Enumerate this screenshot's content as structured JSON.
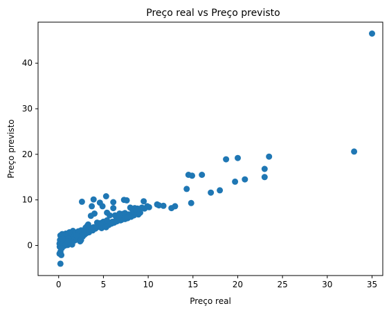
{
  "chart_data": {
    "type": "scatter",
    "title": "Preço real vs Preço previsto",
    "xlabel": "Preço real",
    "ylabel": "Preço previsto",
    "xlim": [
      -2.3,
      36.2
    ],
    "ylim": [
      -6.6,
      49.0
    ],
    "xticks": [
      0,
      5,
      10,
      15,
      20,
      25,
      30,
      35
    ],
    "yticks": [
      0,
      10,
      20,
      30,
      40
    ],
    "grid": false,
    "marker_color": "#1f77b4",
    "points": [
      [
        35.0,
        46.5
      ],
      [
        33.0,
        20.6
      ],
      [
        23.5,
        19.5
      ],
      [
        23.0,
        16.8
      ],
      [
        23.0,
        15.0
      ],
      [
        20.0,
        19.2
      ],
      [
        18.7,
        18.9
      ],
      [
        20.8,
        14.5
      ],
      [
        19.7,
        14.0
      ],
      [
        18.0,
        12.1
      ],
      [
        17.0,
        11.6
      ],
      [
        16.0,
        15.5
      ],
      [
        14.9,
        15.3
      ],
      [
        14.5,
        15.5
      ],
      [
        14.3,
        12.4
      ],
      [
        14.8,
        9.3
      ],
      [
        13.0,
        8.6
      ],
      [
        12.6,
        8.2
      ],
      [
        11.7,
        8.7
      ],
      [
        11.2,
        8.8
      ],
      [
        11.0,
        9.0
      ],
      [
        10.1,
        8.4
      ],
      [
        9.9,
        8.6
      ],
      [
        9.6,
        8.1
      ],
      [
        9.3,
        8.3
      ],
      [
        9.0,
        8.0
      ],
      [
        8.8,
        8.1
      ],
      [
        8.5,
        8.2
      ],
      [
        8.2,
        8.0
      ],
      [
        8.0,
        8.3
      ],
      [
        9.5,
        9.7
      ],
      [
        7.6,
        9.9
      ],
      [
        7.3,
        10.0
      ],
      [
        6.1,
        9.5
      ],
      [
        5.3,
        10.8
      ],
      [
        3.9,
        10.1
      ],
      [
        4.6,
        9.4
      ],
      [
        3.7,
        8.6
      ],
      [
        2.6,
        9.6
      ],
      [
        4.9,
        8.6
      ],
      [
        6.1,
        8.2
      ],
      [
        4.0,
        7.0
      ],
      [
        3.6,
        6.5
      ],
      [
        5.4,
        7.2
      ],
      [
        5.7,
        6.6
      ],
      [
        6.3,
        6.6
      ],
      [
        6.8,
        7.0
      ],
      [
        7.1,
        6.9
      ],
      [
        7.4,
        7.1
      ],
      [
        7.8,
        6.8
      ],
      [
        8.3,
        7.4
      ],
      [
        8.7,
        7.5
      ],
      [
        9.1,
        7.2
      ],
      [
        8.9,
        6.8
      ],
      [
        8.4,
        6.6
      ],
      [
        7.5,
        6.2
      ],
      [
        7.2,
        5.9
      ],
      [
        7.0,
        5.6
      ],
      [
        6.6,
        5.8
      ],
      [
        6.4,
        5.5
      ],
      [
        6.0,
        5.2
      ],
      [
        5.8,
        4.9
      ],
      [
        5.5,
        4.6
      ],
      [
        5.2,
        4.4
      ],
      [
        4.9,
        4.7
      ],
      [
        4.6,
        4.5
      ],
      [
        4.4,
        4.1
      ],
      [
        4.1,
        3.7
      ],
      [
        3.8,
        3.3
      ],
      [
        3.5,
        3.4
      ],
      [
        3.3,
        3.1
      ],
      [
        3.0,
        3.5
      ],
      [
        2.8,
        3.0
      ],
      [
        2.6,
        2.8
      ],
      [
        2.3,
        2.6
      ],
      [
        2.1,
        2.9
      ],
      [
        1.9,
        2.5
      ],
      [
        1.7,
        2.3
      ],
      [
        1.5,
        2.7
      ],
      [
        1.3,
        2.2
      ],
      [
        1.1,
        2.0
      ],
      [
        0.9,
        1.8
      ],
      [
        0.7,
        2.4
      ],
      [
        0.5,
        2.1
      ],
      [
        0.3,
        1.6
      ],
      [
        0.2,
        2.2
      ],
      [
        0.15,
        1.2
      ],
      [
        0.1,
        0.4
      ],
      [
        0.12,
        -0.3
      ],
      [
        0.2,
        -1.4
      ],
      [
        0.1,
        -1.8
      ],
      [
        0.3,
        -2.1
      ],
      [
        0.2,
        -4.0
      ],
      [
        0.4,
        0.9
      ],
      [
        0.6,
        0.6
      ],
      [
        0.8,
        0.3
      ],
      [
        1.0,
        0.1
      ],
      [
        1.2,
        0.4
      ],
      [
        1.4,
        0.8
      ],
      [
        1.6,
        1.3
      ],
      [
        1.8,
        1.1
      ],
      [
        2.0,
        1.5
      ],
      [
        2.2,
        1.9
      ],
      [
        2.4,
        1.6
      ],
      [
        2.7,
        2.0
      ],
      [
        2.9,
        2.4
      ],
      [
        3.1,
        2.7
      ],
      [
        3.4,
        2.9
      ],
      [
        3.6,
        3.8
      ],
      [
        3.9,
        4.0
      ],
      [
        4.2,
        3.9
      ],
      [
        4.5,
        4.2
      ],
      [
        4.8,
        3.8
      ],
      [
        5.0,
        4.3
      ],
      [
        5.3,
        4.0
      ],
      [
        5.6,
        4.5
      ],
      [
        5.9,
        4.8
      ],
      [
        6.2,
        5.0
      ],
      [
        6.5,
        5.3
      ],
      [
        6.9,
        5.5
      ],
      [
        7.4,
        5.8
      ],
      [
        7.8,
        6.4
      ],
      [
        8.1,
        6.3
      ],
      [
        5.0,
        5.2
      ],
      [
        4.3,
        5.0
      ],
      [
        3.2,
        4.3
      ],
      [
        3.0,
        3.9
      ],
      [
        2.5,
        3.3
      ],
      [
        2.2,
        3.1
      ],
      [
        1.6,
        3.2
      ],
      [
        1.2,
        2.9
      ],
      [
        0.8,
        2.6
      ],
      [
        0.4,
        2.5
      ],
      [
        0.9,
        1.3
      ],
      [
        1.4,
        1.7
      ],
      [
        0.6,
        -0.1
      ],
      [
        0.3,
        0.2
      ],
      [
        0.5,
        0.5
      ],
      [
        0.7,
        0.0
      ],
      [
        0.25,
        1.0
      ],
      [
        1.1,
        1.5
      ],
      [
        1.9,
        1.9
      ],
      [
        2.6,
        2.3
      ],
      [
        3.7,
        3.5
      ],
      [
        4.7,
        4.9
      ],
      [
        5.4,
        5.5
      ],
      [
        6.7,
        6.1
      ],
      [
        7.7,
        6.0
      ],
      [
        3.3,
        4.6
      ],
      [
        2.0,
        2.2
      ],
      [
        1.0,
        0.9
      ],
      [
        0.35,
        -0.6
      ],
      [
        0.45,
        1.4
      ],
      [
        1.5,
        0.2
      ],
      [
        2.4,
        0.9
      ],
      [
        2.5,
        1.2
      ]
    ]
  }
}
